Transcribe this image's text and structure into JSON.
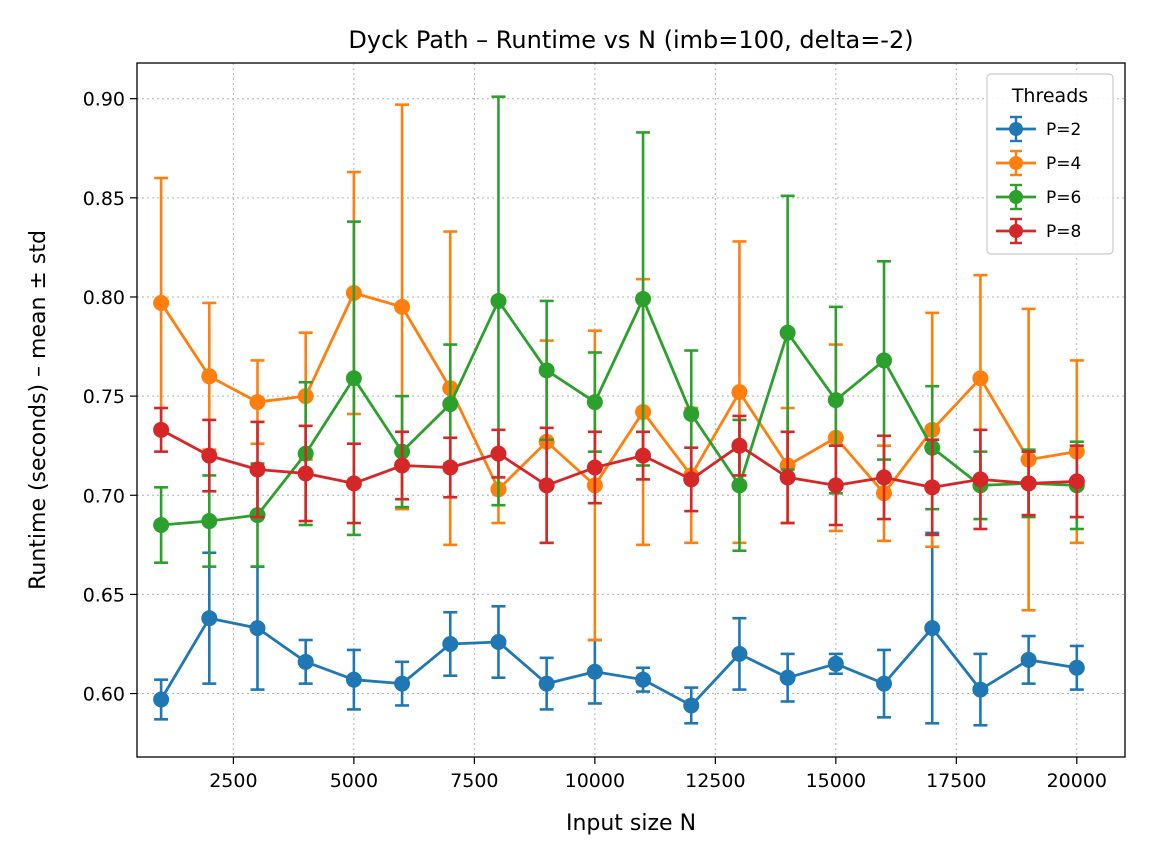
{
  "chart_data": {
    "type": "line",
    "title": "Dyck Path – Runtime vs N (imb=100, delta=-2)",
    "xlabel": "Input size N",
    "ylabel": "Runtime (seconds) – mean ± std",
    "xlim": [
      500,
      21000
    ],
    "ylim": [
      0.568,
      0.918
    ],
    "x_ticks": [
      2500,
      5000,
      7500,
      10000,
      12500,
      15000,
      17500,
      20000
    ],
    "x_tick_labels": [
      "2500",
      "5000",
      "7500",
      "10000",
      "12500",
      "15000",
      "17500",
      "20000"
    ],
    "y_ticks": [
      0.6,
      0.65,
      0.7,
      0.75,
      0.8,
      0.85,
      0.9
    ],
    "y_tick_labels": [
      "0.60",
      "0.65",
      "0.70",
      "0.75",
      "0.80",
      "0.85",
      "0.90"
    ],
    "grid": true,
    "legend_title": "Threads",
    "legend_position": "top-right",
    "x": [
      1000,
      2000,
      3000,
      4000,
      5000,
      6000,
      7000,
      8000,
      9000,
      10000,
      11000,
      12000,
      13000,
      14000,
      15000,
      16000,
      17000,
      18000,
      19000,
      20000
    ],
    "series": [
      {
        "name": "P=2",
        "color": "#1f77b4",
        "values": [
          0.597,
          0.638,
          0.633,
          0.616,
          0.607,
          0.605,
          0.625,
          0.626,
          0.605,
          0.611,
          0.607,
          0.594,
          0.62,
          0.608,
          0.615,
          0.605,
          0.633,
          0.602,
          0.617,
          0.613
        ],
        "std": [
          0.01,
          0.033,
          0.031,
          0.011,
          0.015,
          0.011,
          0.016,
          0.018,
          0.013,
          0.016,
          0.006,
          0.009,
          0.018,
          0.012,
          0.005,
          0.017,
          0.048,
          0.018,
          0.012,
          0.011
        ]
      },
      {
        "name": "P=4",
        "color": "#ff7f0e",
        "values": [
          0.797,
          0.76,
          0.747,
          0.75,
          0.802,
          0.795,
          0.754,
          0.703,
          0.727,
          0.705,
          0.742,
          0.71,
          0.752,
          0.715,
          0.729,
          0.701,
          0.733,
          0.759,
          0.718,
          0.722
        ],
        "std": [
          0.063,
          0.037,
          0.021,
          0.032,
          0.061,
          0.102,
          0.079,
          0.017,
          0.051,
          0.078,
          0.067,
          0.034,
          0.076,
          0.029,
          0.047,
          0.024,
          0.059,
          0.052,
          0.076,
          0.046
        ]
      },
      {
        "name": "P=6",
        "color": "#2ca02c",
        "values": [
          0.685,
          0.687,
          0.69,
          0.721,
          0.759,
          0.722,
          0.746,
          0.798,
          0.763,
          0.747,
          0.799,
          0.741,
          0.705,
          0.782,
          0.748,
          0.768,
          0.724,
          0.705,
          0.706,
          0.705
        ],
        "std": [
          0.019,
          0.023,
          0.026,
          0.036,
          0.079,
          0.028,
          0.03,
          0.103,
          0.035,
          0.025,
          0.084,
          0.032,
          0.033,
          0.069,
          0.047,
          0.05,
          0.031,
          0.017,
          0.017,
          0.022
        ]
      },
      {
        "name": "P=8",
        "color": "#d62728",
        "values": [
          0.733,
          0.72,
          0.713,
          0.711,
          0.706,
          0.715,
          0.714,
          0.721,
          0.705,
          0.714,
          0.72,
          0.708,
          0.725,
          0.709,
          0.705,
          0.709,
          0.704,
          0.708,
          0.706,
          0.707
        ],
        "std": [
          0.011,
          0.018,
          0.024,
          0.024,
          0.02,
          0.017,
          0.015,
          0.012,
          0.029,
          0.018,
          0.012,
          0.016,
          0.015,
          0.023,
          0.02,
          0.021,
          0.024,
          0.025,
          0.016,
          0.018
        ]
      }
    ]
  }
}
